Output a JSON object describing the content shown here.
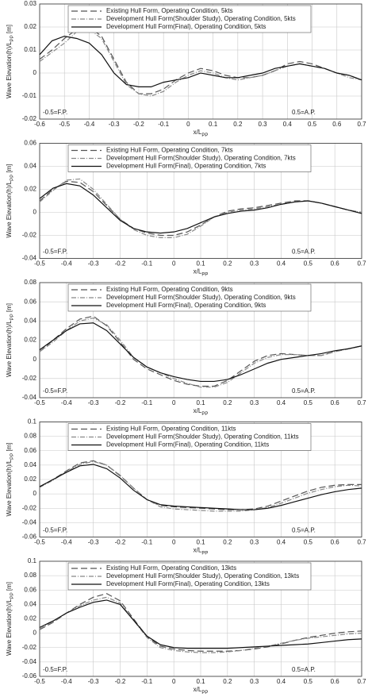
{
  "chart_data": [
    {
      "type": "line",
      "xlabel": [
        "x/L",
        "PP"
      ],
      "ylabel": [
        "Wave Elevation(h)/L",
        "PP",
        " [m]"
      ],
      "annotations": [
        "-0.5=F.P.",
        "0.5=A.P."
      ],
      "grid": true,
      "xlim": [
        -0.6,
        0.7
      ],
      "xticks": [
        -0.6,
        -0.5,
        -0.4,
        -0.3,
        -0.2,
        -0.1,
        0,
        0.1,
        0.2,
        0.3,
        0.4,
        0.5,
        0.6,
        0.7
      ],
      "ylim": [
        -0.02,
        0.03
      ],
      "yticks": [
        -0.02,
        -0.01,
        0,
        0.01,
        0.02,
        0.03
      ],
      "x": [
        -0.6,
        -0.55,
        -0.5,
        -0.45,
        -0.4,
        -0.35,
        -0.3,
        -0.25,
        -0.2,
        -0.15,
        -0.1,
        -0.05,
        0,
        0.05,
        0.1,
        0.15,
        0.2,
        0.25,
        0.3,
        0.35,
        0.4,
        0.45,
        0.5,
        0.55,
        0.6,
        0.65,
        0.7
      ],
      "series": [
        {
          "name": "Existing Hull Form, Operating Condition, 5kts",
          "color": "#555555",
          "dash": "8 4",
          "values": [
            0.006,
            0.01,
            0.015,
            0.019,
            0.02,
            0.016,
            0.006,
            -0.004,
            -0.009,
            -0.009,
            -0.007,
            -0.003,
            0.0,
            0.002,
            0.001,
            -0.001,
            -0.002,
            -0.002,
            -0.001,
            0.001,
            0.004,
            0.005,
            0.004,
            0.002,
            0.0,
            -0.001,
            -0.003
          ]
        },
        {
          "name": "Development Hull Form(Shoulder Study), Operating Condition, 5kts",
          "color": "#888888",
          "dash": "6 2 1 2",
          "values": [
            0.005,
            0.009,
            0.013,
            0.018,
            0.019,
            0.015,
            0.005,
            -0.005,
            -0.009,
            -0.01,
            -0.008,
            -0.004,
            -0.001,
            0.001,
            0.0,
            -0.002,
            -0.003,
            -0.002,
            -0.001,
            0.001,
            0.003,
            0.004,
            0.003,
            0.002,
            0.0,
            -0.002,
            -0.003
          ]
        },
        {
          "name": "Development Hull Form(Final), Operating Condition, 5kts",
          "color": "#111111",
          "dash": "none",
          "values": [
            0.008,
            0.014,
            0.016,
            0.015,
            0.013,
            0.008,
            0.0,
            -0.005,
            -0.006,
            -0.006,
            -0.004,
            -0.003,
            -0.002,
            0.0,
            -0.001,
            -0.002,
            -0.002,
            -0.001,
            0.0,
            0.002,
            0.003,
            0.004,
            0.003,
            0.002,
            0.0,
            -0.001,
            -0.003
          ]
        }
      ]
    },
    {
      "type": "line",
      "xlabel": [
        "x/L",
        "PP"
      ],
      "ylabel": [
        "Wave Elevation(h)/L",
        "PP",
        " [m]"
      ],
      "annotations": [
        "-0.5=F.P.",
        "0.5=A.P."
      ],
      "grid": true,
      "xlim": [
        -0.5,
        0.7
      ],
      "xticks": [
        -0.5,
        -0.4,
        -0.3,
        -0.2,
        -0.1,
        0,
        0.1,
        0.2,
        0.3,
        0.4,
        0.5,
        0.6,
        0.7
      ],
      "ylim": [
        -0.04,
        0.06
      ],
      "yticks": [
        -0.04,
        -0.02,
        0,
        0.02,
        0.04,
        0.06
      ],
      "x": [
        -0.5,
        -0.45,
        -0.4,
        -0.35,
        -0.3,
        -0.25,
        -0.2,
        -0.15,
        -0.1,
        -0.05,
        0,
        0.05,
        0.1,
        0.15,
        0.2,
        0.25,
        0.3,
        0.35,
        0.4,
        0.45,
        0.5,
        0.55,
        0.6,
        0.65,
        0.7
      ],
      "series": [
        {
          "name": "Existing Hull Form, Operating Condition, 7kts",
          "color": "#555555",
          "dash": "8 4",
          "values": [
            0.01,
            0.02,
            0.027,
            0.026,
            0.018,
            0.006,
            -0.006,
            -0.014,
            -0.018,
            -0.02,
            -0.02,
            -0.017,
            -0.011,
            -0.004,
            0.001,
            0.003,
            0.004,
            0.006,
            0.008,
            0.01,
            0.01,
            0.008,
            0.005,
            0.002,
            0.0
          ]
        },
        {
          "name": "Development Hull Form(Shoulder Study), Operating Condition, 7kts",
          "color": "#888888",
          "dash": "6 2 1 2",
          "values": [
            0.009,
            0.019,
            0.028,
            0.029,
            0.02,
            0.007,
            -0.006,
            -0.015,
            -0.02,
            -0.022,
            -0.022,
            -0.019,
            -0.012,
            -0.004,
            0.0,
            0.002,
            0.003,
            0.005,
            0.007,
            0.009,
            0.01,
            0.008,
            0.005,
            0.002,
            0.0
          ]
        },
        {
          "name": "Development Hull Form(Final), Operating Condition, 7kts",
          "color": "#111111",
          "dash": "none",
          "values": [
            0.012,
            0.021,
            0.025,
            0.023,
            0.015,
            0.004,
            -0.007,
            -0.014,
            -0.017,
            -0.018,
            -0.017,
            -0.014,
            -0.009,
            -0.004,
            -0.001,
            0.001,
            0.002,
            0.004,
            0.007,
            0.009,
            0.01,
            0.008,
            0.005,
            0.002,
            -0.001
          ]
        }
      ]
    },
    {
      "type": "line",
      "xlabel": [
        "x/L",
        "PP"
      ],
      "ylabel": [
        "Wave Elevation(h)/L",
        "PP",
        " [m]"
      ],
      "annotations": [
        "-0.5=F.P.",
        "0.5=A.P."
      ],
      "grid": true,
      "xlim": [
        -0.5,
        0.7
      ],
      "xticks": [
        -0.5,
        -0.4,
        -0.3,
        -0.2,
        -0.1,
        0,
        0.1,
        0.2,
        0.3,
        0.4,
        0.5,
        0.6,
        0.7
      ],
      "ylim": [
        -0.04,
        0.08
      ],
      "yticks": [
        -0.04,
        -0.02,
        0,
        0.02,
        0.04,
        0.06,
        0.08
      ],
      "x": [
        -0.5,
        -0.45,
        -0.4,
        -0.35,
        -0.3,
        -0.25,
        -0.2,
        -0.15,
        -0.1,
        -0.05,
        0,
        0.05,
        0.1,
        0.15,
        0.2,
        0.25,
        0.3,
        0.35,
        0.4,
        0.45,
        0.5,
        0.55,
        0.6,
        0.65,
        0.7
      ],
      "series": [
        {
          "name": "Existing Hull Form, Operating Condition, 9kts",
          "color": "#555555",
          "dash": "8 4",
          "values": [
            0.008,
            0.02,
            0.032,
            0.042,
            0.045,
            0.035,
            0.018,
            0.0,
            -0.01,
            -0.016,
            -0.022,
            -0.026,
            -0.028,
            -0.028,
            -0.022,
            -0.012,
            -0.002,
            0.004,
            0.006,
            0.005,
            0.004,
            0.004,
            0.008,
            0.011,
            0.014
          ]
        },
        {
          "name": "Development Hull Form(Shoulder Study), Operating Condition, 9kts",
          "color": "#888888",
          "dash": "6 2 1 2",
          "values": [
            0.008,
            0.018,
            0.03,
            0.04,
            0.043,
            0.036,
            0.02,
            0.002,
            -0.008,
            -0.014,
            -0.02,
            -0.025,
            -0.029,
            -0.029,
            -0.024,
            -0.014,
            -0.004,
            0.002,
            0.005,
            0.005,
            0.004,
            0.004,
            0.008,
            0.011,
            0.014
          ]
        },
        {
          "name": "Development Hull Form(Final), Operating Condition, 9kts",
          "color": "#111111",
          "dash": "none",
          "values": [
            0.01,
            0.02,
            0.03,
            0.037,
            0.038,
            0.03,
            0.016,
            0.002,
            -0.008,
            -0.014,
            -0.018,
            -0.021,
            -0.023,
            -0.023,
            -0.021,
            -0.016,
            -0.01,
            -0.004,
            0.0,
            0.002,
            0.004,
            0.006,
            0.009,
            0.011,
            0.014
          ]
        }
      ]
    },
    {
      "type": "line",
      "xlabel": [
        "x/L",
        "PP"
      ],
      "ylabel": [
        "Wave Elevation(h)/L",
        "PP",
        " [m]"
      ],
      "annotations": [
        "-0.5=F.P.",
        "0.5=A.P."
      ],
      "grid": true,
      "xlim": [
        -0.5,
        0.7
      ],
      "xticks": [
        -0.5,
        -0.4,
        -0.3,
        -0.2,
        -0.1,
        0,
        0.1,
        0.2,
        0.3,
        0.4,
        0.5,
        0.6,
        0.7
      ],
      "ylim": [
        -0.06,
        0.1
      ],
      "yticks": [
        -0.06,
        -0.04,
        -0.02,
        0,
        0.02,
        0.04,
        0.06,
        0.08,
        0.1
      ],
      "x": [
        -0.5,
        -0.45,
        -0.4,
        -0.35,
        -0.3,
        -0.25,
        -0.2,
        -0.15,
        -0.1,
        -0.05,
        0,
        0.05,
        0.1,
        0.15,
        0.2,
        0.25,
        0.3,
        0.35,
        0.4,
        0.45,
        0.5,
        0.55,
        0.6,
        0.65,
        0.7
      ],
      "series": [
        {
          "name": "Existing Hull Form, Operating Condition, 11kts",
          "color": "#555555",
          "dash": "8 4",
          "values": [
            0.01,
            0.02,
            0.032,
            0.043,
            0.046,
            0.04,
            0.025,
            0.008,
            -0.008,
            -0.016,
            -0.018,
            -0.019,
            -0.02,
            -0.021,
            -0.022,
            -0.022,
            -0.021,
            -0.017,
            -0.01,
            -0.003,
            0.004,
            0.009,
            0.012,
            0.013,
            0.013
          ]
        },
        {
          "name": "Development Hull Form(Shoulder Study), Operating Condition, 11kts",
          "color": "#888888",
          "dash": "6 2 1 2",
          "values": [
            0.009,
            0.019,
            0.031,
            0.041,
            0.045,
            0.04,
            0.026,
            0.008,
            -0.008,
            -0.018,
            -0.021,
            -0.022,
            -0.023,
            -0.024,
            -0.024,
            -0.024,
            -0.022,
            -0.019,
            -0.013,
            -0.006,
            0.001,
            0.006,
            0.01,
            0.012,
            0.011
          ]
        },
        {
          "name": "Development Hull Form(Final), Operating Condition, 11kts",
          "color": "#111111",
          "dash": "none",
          "values": [
            0.01,
            0.02,
            0.03,
            0.039,
            0.041,
            0.035,
            0.022,
            0.005,
            -0.008,
            -0.015,
            -0.017,
            -0.018,
            -0.019,
            -0.02,
            -0.021,
            -0.022,
            -0.022,
            -0.02,
            -0.016,
            -0.011,
            -0.006,
            -0.001,
            0.003,
            0.006,
            0.008
          ]
        }
      ]
    },
    {
      "type": "line",
      "xlabel": [
        "x/L",
        "PP"
      ],
      "ylabel": [
        "Wave Elevation(h)/L",
        "PP",
        " [m]"
      ],
      "annotations": [
        "-0.5=F.P.",
        "0.5=A.P."
      ],
      "grid": true,
      "xlim": [
        -0.5,
        0.7
      ],
      "xticks": [
        -0.5,
        -0.4,
        -0.3,
        -0.2,
        -0.1,
        0,
        0.1,
        0.2,
        0.3,
        0.4,
        0.5,
        0.6,
        0.7
      ],
      "ylim": [
        -0.06,
        0.1
      ],
      "yticks": [
        -0.06,
        -0.04,
        -0.02,
        0,
        0.02,
        0.04,
        0.06,
        0.08,
        0.1
      ],
      "x": [
        -0.5,
        -0.45,
        -0.4,
        -0.35,
        -0.3,
        -0.25,
        -0.2,
        -0.15,
        -0.1,
        -0.05,
        0,
        0.05,
        0.1,
        0.15,
        0.2,
        0.25,
        0.3,
        0.35,
        0.4,
        0.45,
        0.5,
        0.55,
        0.6,
        0.65,
        0.7
      ],
      "series": [
        {
          "name": "Existing Hull Form, Operating Condition, 13kts",
          "color": "#555555",
          "dash": "8 4",
          "values": [
            0.005,
            0.015,
            0.028,
            0.04,
            0.05,
            0.055,
            0.045,
            0.02,
            -0.005,
            -0.018,
            -0.022,
            -0.024,
            -0.025,
            -0.025,
            -0.025,
            -0.024,
            -0.022,
            -0.019,
            -0.015,
            -0.01,
            -0.006,
            -0.003,
            0.0,
            0.002,
            0.003
          ]
        },
        {
          "name": "Development Hull Form(Shoulder Study), Operating Condition, 13kts",
          "color": "#888888",
          "dash": "6 2 1 2",
          "values": [
            0.006,
            0.016,
            0.028,
            0.038,
            0.046,
            0.05,
            0.042,
            0.018,
            -0.006,
            -0.02,
            -0.024,
            -0.026,
            -0.027,
            -0.027,
            -0.026,
            -0.024,
            -0.021,
            -0.018,
            -0.014,
            -0.01,
            -0.007,
            -0.005,
            -0.003,
            -0.001,
            0.0
          ]
        },
        {
          "name": "Development Hull Form(Final), Operating Condition, 13kts",
          "color": "#111111",
          "dash": "none",
          "values": [
            0.008,
            0.017,
            0.028,
            0.036,
            0.043,
            0.046,
            0.04,
            0.018,
            -0.004,
            -0.016,
            -0.02,
            -0.021,
            -0.021,
            -0.021,
            -0.021,
            -0.02,
            -0.019,
            -0.018,
            -0.017,
            -0.016,
            -0.015,
            -0.013,
            -0.011,
            -0.009,
            -0.008
          ]
        }
      ]
    }
  ]
}
